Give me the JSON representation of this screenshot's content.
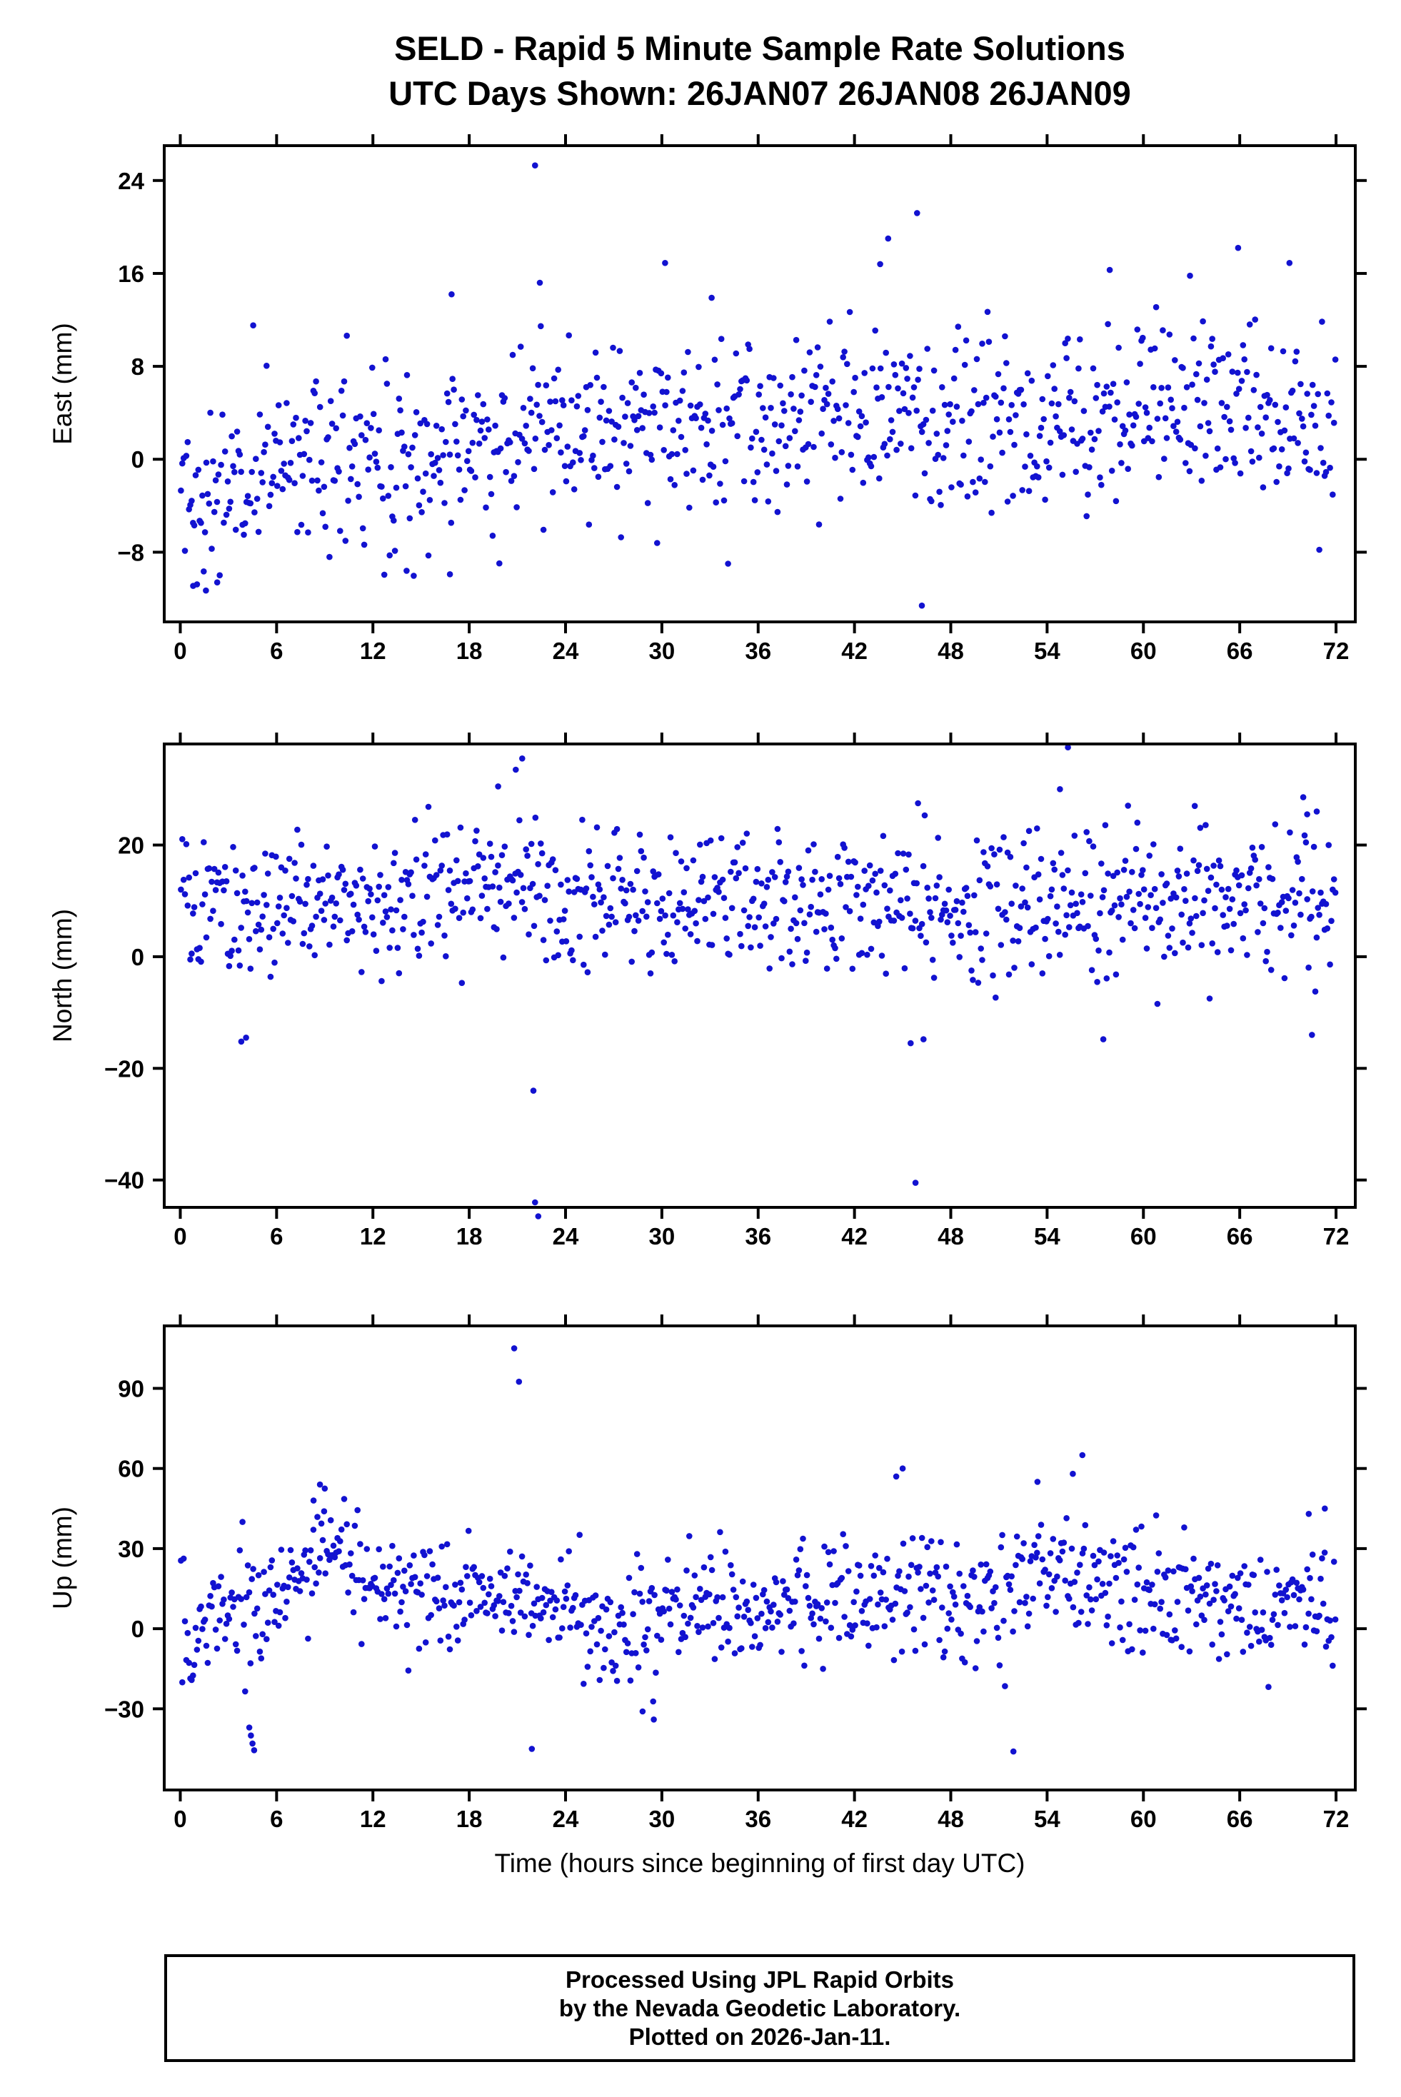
{
  "title": {
    "line1": "SELD - Rapid 5 Minute Sample Rate Solutions",
    "line2": "UTC Days Shown:  26JAN07 26JAN08 26JAN09"
  },
  "footer": {
    "line1": "Processed Using JPL Rapid Orbits",
    "line2": "by the Nevada Geodetic Laboratory.",
    "line3": "Plotted on 2026-Jan-11."
  },
  "chart_data": {
    "type": "scatter",
    "title": "SELD - Rapid 5 Minute Sample Rate Solutions",
    "subtitle": "UTC Days Shown:  26JAN07 26JAN08 26JAN09",
    "xlabel": "Time (hours since beginning of first day UTC)",
    "point_color": "#1212d0",
    "x_ticks": [
      0,
      6,
      12,
      18,
      24,
      30,
      36,
      42,
      48,
      54,
      60,
      66,
      72
    ],
    "xlim": [
      -1.0,
      73.2
    ],
    "n_points": 864,
    "sample_interval_hours": 0.0833333,
    "panels": [
      {
        "name": "east",
        "ylabel": "East (mm)",
        "ylim": [
          -14.0,
          27.0
        ],
        "yticks": [
          -8,
          0,
          8,
          16,
          24
        ],
        "seed": 1101,
        "std": 3.9,
        "clamp": [
          -11.3,
          15.5
        ],
        "trend": [
          [
            0,
            -3.2
          ],
          [
            3,
            -2.0
          ],
          [
            6,
            0.5
          ],
          [
            12,
            0.8
          ],
          [
            16,
            -0.5
          ],
          [
            20,
            2.0
          ],
          [
            24,
            3.0
          ],
          [
            30,
            3.0
          ],
          [
            36,
            2.5
          ],
          [
            42,
            4.0
          ],
          [
            48,
            3.5
          ],
          [
            54,
            3.0
          ],
          [
            60,
            4.0
          ],
          [
            66,
            4.5
          ],
          [
            72,
            3.5
          ]
        ],
        "outliers": [
          [
            22.1,
            25.3
          ],
          [
            45.9,
            21.2
          ],
          [
            44.1,
            19.0
          ],
          [
            43.6,
            16.8
          ],
          [
            57.9,
            16.3
          ],
          [
            65.9,
            18.2
          ],
          [
            69.1,
            16.9
          ],
          [
            62.9,
            15.8
          ],
          [
            16.9,
            14.2
          ],
          [
            22.4,
            15.2
          ],
          [
            30.2,
            16.9
          ],
          [
            33.1,
            13.9
          ],
          [
            46.2,
            -12.6
          ],
          [
            1.6,
            -11.3
          ],
          [
            2.3,
            -10.6
          ],
          [
            0.8,
            -10.9
          ],
          [
            16.8,
            -9.9
          ],
          [
            14.1,
            -9.6
          ]
        ]
      },
      {
        "name": "north",
        "ylabel": "North (mm)",
        "ylim": [
          -44.9,
          38.1
        ],
        "yticks": [
          -40,
          -20,
          0,
          20
        ],
        "seed": 2202,
        "std": 6.2,
        "clamp": [
          -13.5,
          29.0
        ],
        "trend": [
          [
            0,
            9
          ],
          [
            12,
            10
          ],
          [
            20,
            13
          ],
          [
            24,
            10
          ],
          [
            36,
            10
          ],
          [
            44,
            11
          ],
          [
            48,
            8
          ],
          [
            60,
            9
          ],
          [
            72,
            12
          ]
        ],
        "outliers": [
          [
            20.9,
            33.5
          ],
          [
            21.3,
            35.5
          ],
          [
            19.8,
            30.5
          ],
          [
            55.3,
            37.5
          ],
          [
            54.8,
            30.0
          ],
          [
            22.0,
            -24.0
          ],
          [
            22.1,
            -44.0
          ],
          [
            22.3,
            -46.5
          ],
          [
            45.8,
            -40.5
          ],
          [
            45.5,
            -15.5
          ],
          [
            46.3,
            -14.8
          ],
          [
            4.1,
            -14.5
          ],
          [
            3.8,
            -15.2
          ],
          [
            70.5,
            -14.0
          ],
          [
            70.8,
            26.0
          ],
          [
            70.2,
            25.5
          ],
          [
            63.2,
            27.0
          ],
          [
            57.5,
            -14.8
          ]
        ]
      },
      {
        "name": "up",
        "ylabel": "Up (mm)",
        "ylim": [
          -60.4,
          113.4
        ],
        "yticks": [
          -30,
          0,
          30,
          60,
          90
        ],
        "seed": 3303,
        "std": 11.0,
        "clamp": [
          -30.0,
          50.0
        ],
        "trend": [
          [
            0,
            -3
          ],
          [
            2,
            5
          ],
          [
            5,
            8
          ],
          [
            7,
            18
          ],
          [
            9,
            30
          ],
          [
            11,
            22
          ],
          [
            14,
            16
          ],
          [
            18,
            14
          ],
          [
            21,
            12
          ],
          [
            24,
            4
          ],
          [
            27,
            2
          ],
          [
            30,
            6
          ],
          [
            33,
            12
          ],
          [
            36,
            8
          ],
          [
            42,
            12
          ],
          [
            45,
            16
          ],
          [
            48,
            10
          ],
          [
            51,
            12
          ],
          [
            54,
            22
          ],
          [
            57,
            18
          ],
          [
            60,
            14
          ],
          [
            63,
            12
          ],
          [
            66,
            6
          ],
          [
            69,
            8
          ],
          [
            72,
            6
          ]
        ],
        "outliers": [
          [
            20.8,
            105.0
          ],
          [
            21.1,
            92.5
          ],
          [
            4.3,
            -37.0
          ],
          [
            4.4,
            -40.0
          ],
          [
            4.5,
            -43.0
          ],
          [
            4.6,
            -45.5
          ],
          [
            21.9,
            -45.0
          ],
          [
            51.9,
            -46.0
          ],
          [
            45.0,
            60.0
          ],
          [
            44.6,
            57.0
          ],
          [
            56.2,
            65.0
          ],
          [
            8.7,
            54.0
          ],
          [
            9.0,
            52.5
          ],
          [
            8.3,
            48.0
          ],
          [
            53.4,
            55.0
          ],
          [
            55.6,
            58.0
          ],
          [
            71.3,
            45.0
          ],
          [
            70.3,
            43.0
          ],
          [
            29.5,
            -34.0
          ],
          [
            28.8,
            -31.0
          ]
        ]
      }
    ]
  }
}
